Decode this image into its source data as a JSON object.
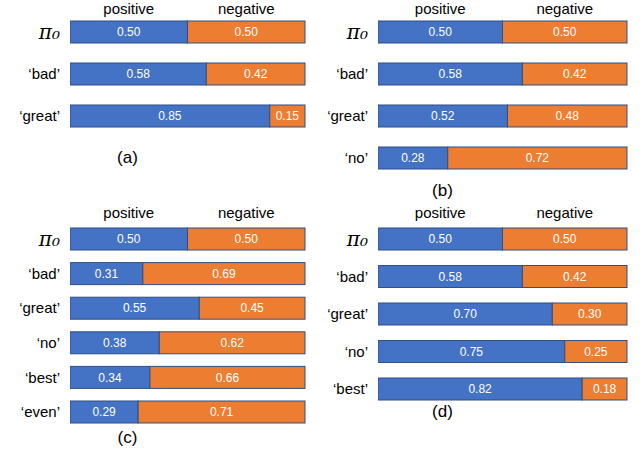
{
  "chart_data": [
    {
      "type": "bar",
      "title": "(a)",
      "orientation": "horizontal",
      "stacked": true,
      "data_labels": true,
      "tick_labels": false,
      "legend": "top",
      "xlim": [
        0,
        1
      ],
      "categories": [
        "π₀",
        "‘bad’",
        "‘great’"
      ],
      "series": [
        {
          "name": "positive",
          "color": "#4472c4",
          "values": [
            0.5,
            0.58,
            0.85
          ],
          "value_labels": [
            "0.50",
            "0.58",
            "0.85"
          ]
        },
        {
          "name": "negative",
          "color": "#ed7d31",
          "values": [
            0.5,
            0.42,
            0.15
          ],
          "value_labels": [
            "0.50",
            "0.42",
            "0.15"
          ]
        }
      ]
    },
    {
      "type": "bar",
      "title": "(b)",
      "orientation": "horizontal",
      "stacked": true,
      "data_labels": true,
      "tick_labels": false,
      "legend": "top",
      "xlim": [
        0,
        1
      ],
      "categories": [
        "π₀",
        "‘bad’",
        "‘great’",
        "‘no’"
      ],
      "series": [
        {
          "name": "positive",
          "color": "#4472c4",
          "values": [
            0.5,
            0.58,
            0.52,
            0.28
          ],
          "value_labels": [
            "0.50",
            "0.58",
            "0.52",
            "0.28"
          ]
        },
        {
          "name": "negative",
          "color": "#ed7d31",
          "values": [
            0.5,
            0.42,
            0.48,
            0.72
          ],
          "value_labels": [
            "0.50",
            "0.42",
            "0.48",
            "0.72"
          ]
        }
      ]
    },
    {
      "type": "bar",
      "title": "(c)",
      "orientation": "horizontal",
      "stacked": true,
      "data_labels": true,
      "tick_labels": false,
      "legend": "top",
      "xlim": [
        0,
        1
      ],
      "categories": [
        "π₀",
        "‘bad’",
        "‘great’",
        "‘no’",
        "‘best’",
        "‘even’"
      ],
      "series": [
        {
          "name": "positive",
          "color": "#4472c4",
          "values": [
            0.5,
            0.31,
            0.55,
            0.38,
            0.34,
            0.29
          ],
          "value_labels": [
            "0.50",
            "0.31",
            "0.55",
            "0.38",
            "0.34",
            "0.29"
          ]
        },
        {
          "name": "negative",
          "color": "#ed7d31",
          "values": [
            0.5,
            0.69,
            0.45,
            0.62,
            0.66,
            0.71
          ],
          "value_labels": [
            "0.50",
            "0.69",
            "0.45",
            "0.62",
            "0.66",
            "0.71"
          ]
        }
      ]
    },
    {
      "type": "bar",
      "title": "(d)",
      "orientation": "horizontal",
      "stacked": true,
      "data_labels": true,
      "tick_labels": false,
      "legend": "top",
      "xlim": [
        0,
        1
      ],
      "categories": [
        "π₀",
        "‘bad’",
        "‘great’",
        "‘no’",
        "‘best’"
      ],
      "series": [
        {
          "name": "positive",
          "color": "#4472c4",
          "values": [
            0.5,
            0.58,
            0.7,
            0.75,
            0.82
          ],
          "value_labels": [
            "0.50",
            "0.58",
            "0.70",
            "0.75",
            "0.82"
          ]
        },
        {
          "name": "negative",
          "color": "#ed7d31",
          "values": [
            0.5,
            0.42,
            0.3,
            0.25,
            0.18
          ],
          "value_labels": [
            "0.50",
            "0.42",
            "0.30",
            "0.25",
            "0.18"
          ]
        }
      ]
    }
  ]
}
